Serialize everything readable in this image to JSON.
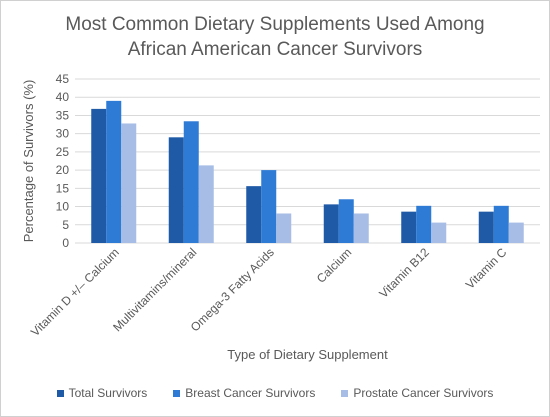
{
  "chart_data": {
    "type": "bar",
    "title": "Most Common Dietary Supplements Used Among African American Cancer Survivors",
    "xlabel": "Type of Dietary Supplement",
    "ylabel": "Percentage of Survivors (%)",
    "ylim": [
      0,
      45
    ],
    "yticks": [
      0,
      5,
      10,
      15,
      20,
      25,
      30,
      35,
      40,
      45
    ],
    "grid": true,
    "legend_position": "bottom",
    "categories": [
      "Vitamin D +/– Calcium",
      "Multivitamins/mineral",
      "Omega-3 Fatty Acids",
      "Calcium",
      "Vitamin B12",
      "Vitamin C"
    ],
    "series": [
      {
        "name": "Total Survivors",
        "color": "#1f5aa6",
        "values": [
          36.8,
          29.0,
          15.6,
          10.6,
          8.6,
          8.6
        ]
      },
      {
        "name": "Breast Cancer Survivors",
        "color": "#2e7bd6",
        "values": [
          39.0,
          33.4,
          20.0,
          12.0,
          10.2,
          10.2
        ]
      },
      {
        "name": "Prostate Cancer Survivors",
        "color": "#a7bde6",
        "values": [
          32.8,
          21.3,
          8.1,
          8.1,
          5.6,
          5.6
        ]
      }
    ]
  }
}
